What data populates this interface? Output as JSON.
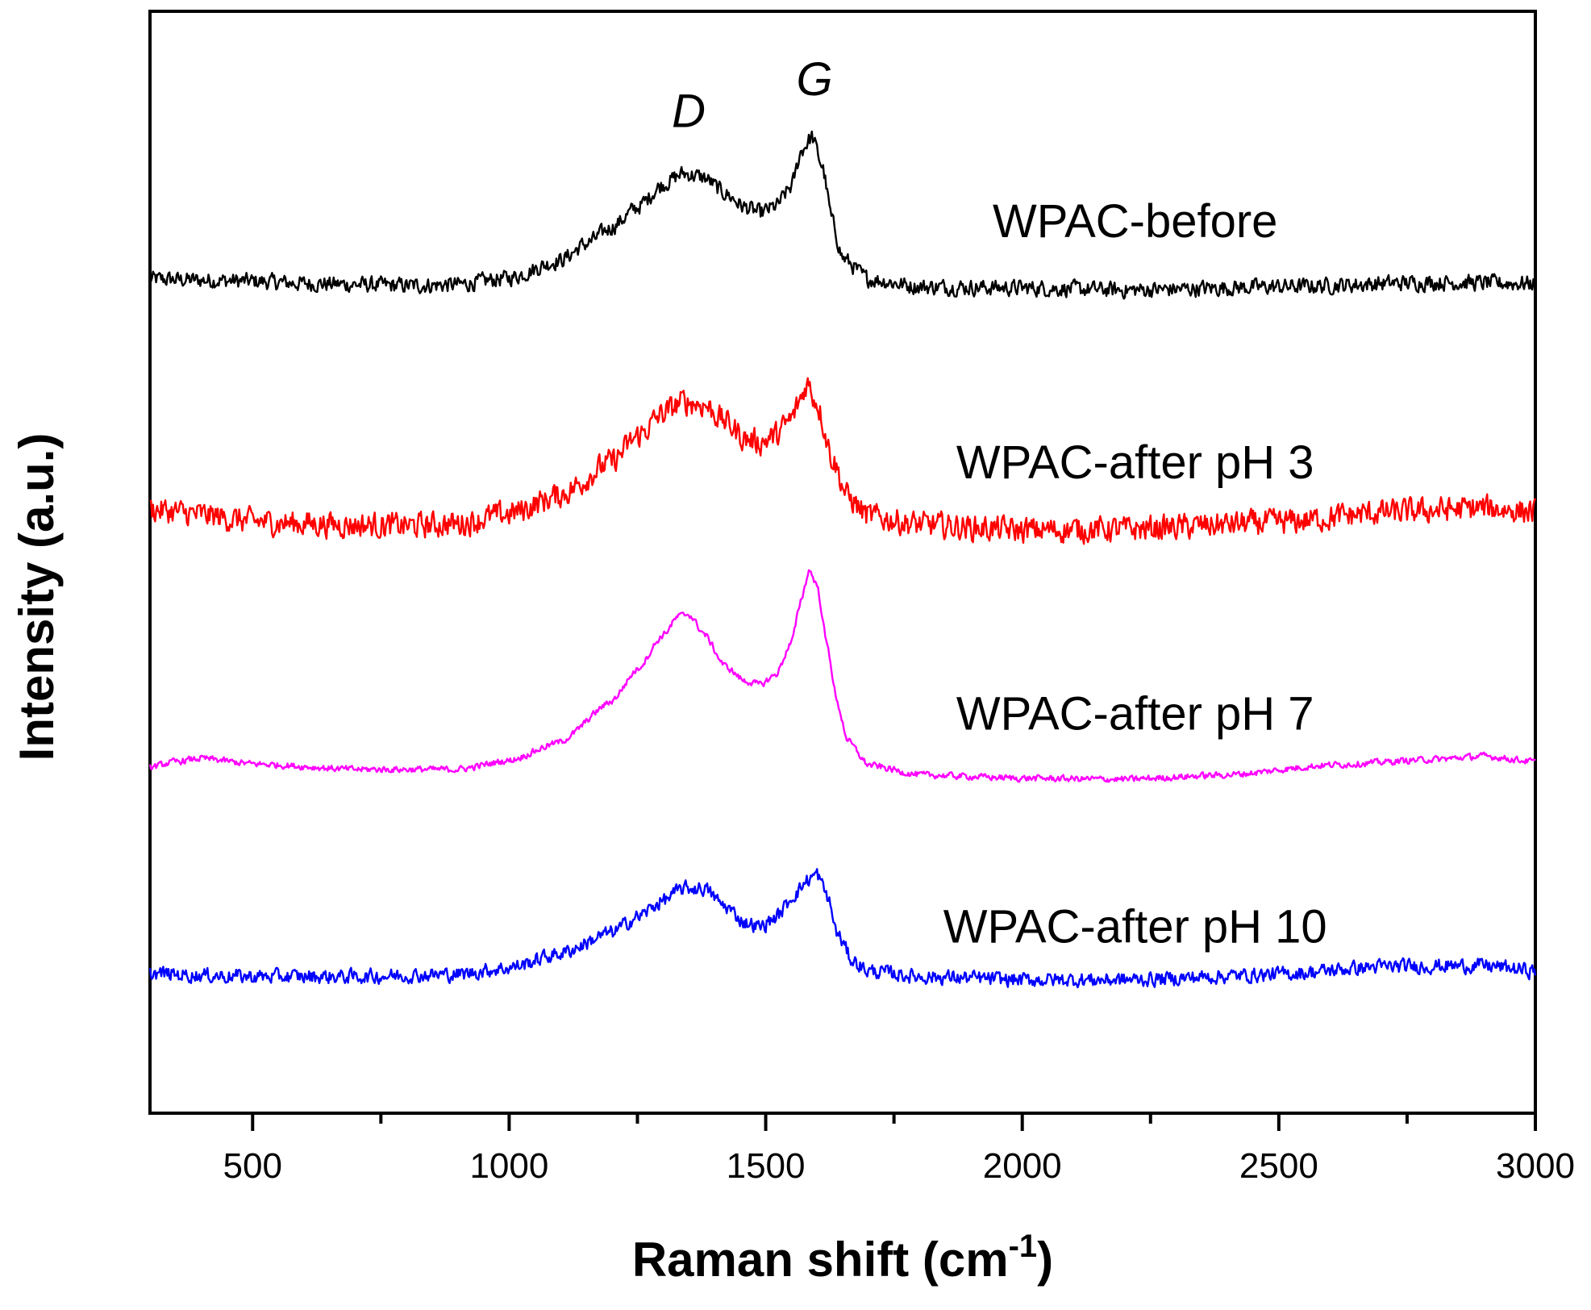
{
  "chart_data": {
    "type": "line",
    "xlabel": "Raman shift (cm",
    "xlabel_superscript": "-1",
    "xlabel_suffix": ")",
    "ylabel": "Intensity (a.u.)",
    "xlim": [
      300,
      3000
    ],
    "ylim": [
      0,
      100
    ],
    "x_ticks": [
      500,
      1000,
      1500,
      2000,
      2500,
      3000
    ],
    "x_tick_labels": [
      "500",
      "1000",
      "1500",
      "2000",
      "2500",
      "3000"
    ],
    "x_minor_ticks": [
      750,
      1250,
      1750,
      2250,
      2750
    ],
    "y_ticks_shown": false,
    "grid": false,
    "annotations": [
      {
        "text": "D",
        "x": 1350,
        "y": 89.5
      },
      {
        "text": "G",
        "x": 1595,
        "y": 92.4
      }
    ],
    "series": [
      {
        "name": "WPAC-before",
        "color": "#000000",
        "label_pos": {
          "x": 2220,
          "y": 79.5
        },
        "noise": 1.0,
        "points": [
          [
            300,
            75.7
          ],
          [
            400,
            75.6
          ],
          [
            500,
            75.5
          ],
          [
            600,
            75.3
          ],
          [
            700,
            75.2
          ],
          [
            800,
            75.1
          ],
          [
            900,
            75.2
          ],
          [
            1000,
            75.8
          ],
          [
            1100,
            77.4
          ],
          [
            1150,
            78.9
          ],
          [
            1200,
            80.4
          ],
          [
            1250,
            82.2
          ],
          [
            1300,
            84.3
          ],
          [
            1340,
            85.3
          ],
          [
            1380,
            84.9
          ],
          [
            1420,
            83.5
          ],
          [
            1460,
            82.2
          ],
          [
            1490,
            81.7
          ],
          [
            1520,
            82.3
          ],
          [
            1550,
            84.1
          ],
          [
            1570,
            87.4
          ],
          [
            1590,
            88.6
          ],
          [
            1610,
            86.0
          ],
          [
            1630,
            80.9
          ],
          [
            1650,
            77.6
          ],
          [
            1700,
            75.7
          ],
          [
            1800,
            75.0
          ],
          [
            2000,
            74.9
          ],
          [
            2200,
            74.7
          ],
          [
            2500,
            75.0
          ],
          [
            2800,
            75.4
          ],
          [
            3000,
            75.3
          ]
        ]
      },
      {
        "name": "WPAC-after pH 3",
        "color": "#ff0000",
        "label_pos": {
          "x": 2220,
          "y": 57.6
        },
        "noise": 1.6,
        "points": [
          [
            300,
            54.8
          ],
          [
            400,
            54.3
          ],
          [
            500,
            53.7
          ],
          [
            600,
            53.5
          ],
          [
            700,
            53.4
          ],
          [
            800,
            53.3
          ],
          [
            900,
            53.5
          ],
          [
            1000,
            54.4
          ],
          [
            1100,
            56.1
          ],
          [
            1200,
            59.1
          ],
          [
            1250,
            61.4
          ],
          [
            1300,
            63.5
          ],
          [
            1340,
            64.6
          ],
          [
            1380,
            64.3
          ],
          [
            1420,
            62.8
          ],
          [
            1460,
            61.2
          ],
          [
            1490,
            60.9
          ],
          [
            1520,
            61.5
          ],
          [
            1550,
            63.0
          ],
          [
            1570,
            65.0
          ],
          [
            1580,
            66.3
          ],
          [
            1600,
            64.5
          ],
          [
            1630,
            59.4
          ],
          [
            1660,
            55.9
          ],
          [
            1700,
            54.2
          ],
          [
            1800,
            53.4
          ],
          [
            2000,
            52.9
          ],
          [
            2200,
            53.0
          ],
          [
            2500,
            53.6
          ],
          [
            2700,
            54.5
          ],
          [
            2900,
            54.9
          ],
          [
            3000,
            54.6
          ]
        ]
      },
      {
        "name": "WPAC-after pH 7",
        "color": "#ff00ff",
        "label_pos": {
          "x": 2220,
          "y": 34.8
        },
        "noise": 0.4,
        "points": [
          [
            300,
            31.4
          ],
          [
            350,
            31.9
          ],
          [
            400,
            32.2
          ],
          [
            500,
            31.7
          ],
          [
            700,
            31.2
          ],
          [
            900,
            31.2
          ],
          [
            1000,
            32.0
          ],
          [
            1100,
            33.7
          ],
          [
            1200,
            37.4
          ],
          [
            1250,
            40.3
          ],
          [
            1300,
            43.4
          ],
          [
            1330,
            45.1
          ],
          [
            1350,
            45.3
          ],
          [
            1380,
            43.5
          ],
          [
            1420,
            40.6
          ],
          [
            1460,
            39.2
          ],
          [
            1490,
            38.9
          ],
          [
            1520,
            39.8
          ],
          [
            1550,
            42.7
          ],
          [
            1570,
            46.8
          ],
          [
            1585,
            49.3
          ],
          [
            1600,
            47.9
          ],
          [
            1620,
            42.4
          ],
          [
            1640,
            37.1
          ],
          [
            1660,
            33.8
          ],
          [
            1700,
            31.6
          ],
          [
            1800,
            30.7
          ],
          [
            2000,
            30.4
          ],
          [
            2200,
            30.3
          ],
          [
            2400,
            30.7
          ],
          [
            2600,
            31.6
          ],
          [
            2800,
            32.1
          ],
          [
            2900,
            32.4
          ],
          [
            3000,
            31.9
          ]
        ]
      },
      {
        "name": "WPAC-after pH 10",
        "color": "#0000ff",
        "label_pos": {
          "x": 2220,
          "y": 15.5
        },
        "noise": 0.9,
        "points": [
          [
            300,
            12.7
          ],
          [
            400,
            12.5
          ],
          [
            500,
            12.4
          ],
          [
            700,
            12.4
          ],
          [
            900,
            12.6
          ],
          [
            1000,
            13.2
          ],
          [
            1100,
            14.5
          ],
          [
            1200,
            16.4
          ],
          [
            1250,
            17.8
          ],
          [
            1300,
            19.3
          ],
          [
            1340,
            20.4
          ],
          [
            1380,
            20.4
          ],
          [
            1420,
            18.8
          ],
          [
            1460,
            17.3
          ],
          [
            1490,
            16.9
          ],
          [
            1520,
            17.8
          ],
          [
            1560,
            20.0
          ],
          [
            1580,
            21.1
          ],
          [
            1600,
            21.7
          ],
          [
            1620,
            19.7
          ],
          [
            1640,
            16.2
          ],
          [
            1670,
            13.8
          ],
          [
            1700,
            12.9
          ],
          [
            1800,
            12.4
          ],
          [
            2000,
            12.1
          ],
          [
            2200,
            12.1
          ],
          [
            2500,
            12.6
          ],
          [
            2700,
            13.3
          ],
          [
            2900,
            13.4
          ],
          [
            3000,
            12.9
          ]
        ]
      }
    ]
  }
}
